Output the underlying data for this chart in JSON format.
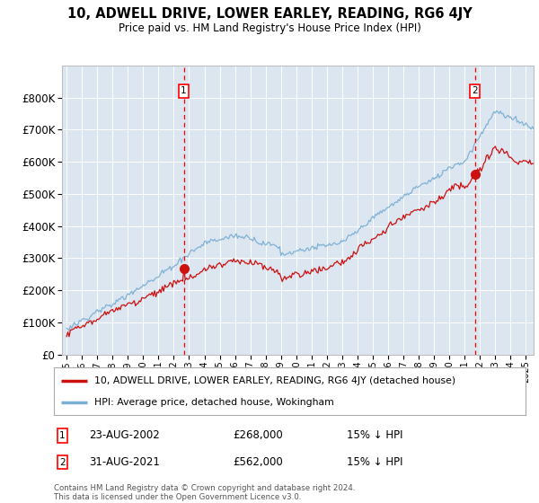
{
  "title": "10, ADWELL DRIVE, LOWER EARLEY, READING, RG6 4JY",
  "subtitle": "Price paid vs. HM Land Registry's House Price Index (HPI)",
  "background_color": "#dce6f0",
  "plot_bg_color": "#dce6f0",
  "hpi_color": "#7bafd4",
  "price_color": "#cc1111",
  "marker1_date_label": "23-AUG-2002",
  "marker1_value_label": "£268,000",
  "marker1_hpi_label": "15% ↓ HPI",
  "marker1_year": 2002.65,
  "marker1_price": 268000,
  "marker2_date_label": "31-AUG-2021",
  "marker2_value_label": "£562,000",
  "marker2_hpi_label": "15% ↓ HPI",
  "marker2_year": 2021.66,
  "marker2_price": 562000,
  "ylim": [
    0,
    900000
  ],
  "xlim_start": 1994.7,
  "xlim_end": 2025.5,
  "yticks": [
    0,
    100000,
    200000,
    300000,
    400000,
    500000,
    600000,
    700000,
    800000
  ],
  "legend_label_price": "10, ADWELL DRIVE, LOWER EARLEY, READING, RG6 4JY (detached house)",
  "legend_label_hpi": "HPI: Average price, detached house, Wokingham",
  "footnote": "Contains HM Land Registry data © Crown copyright and database right 2024.\nThis data is licensed under the Open Government Licence v3.0."
}
